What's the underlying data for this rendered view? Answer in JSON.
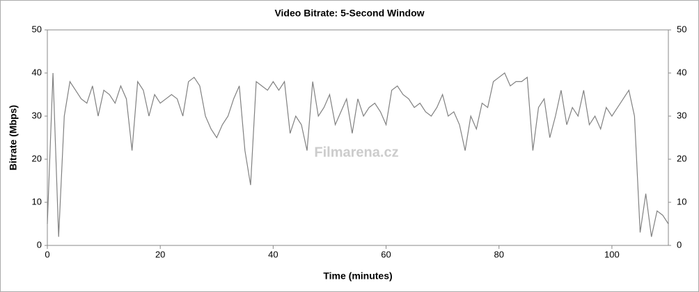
{
  "chart_data": {
    "type": "line",
    "title": "Video Bitrate: 5-Second Window",
    "x_label": "Time (minutes)",
    "y_label": "Bitrate (Mbps)",
    "watermark": "Filmarena.cz",
    "x": [
      0,
      1,
      2,
      3,
      4,
      5,
      6,
      7,
      8,
      9,
      10,
      11,
      12,
      13,
      14,
      15,
      16,
      17,
      18,
      19,
      20,
      21,
      22,
      23,
      24,
      25,
      26,
      27,
      28,
      29,
      30,
      31,
      32,
      33,
      34,
      35,
      36,
      37,
      38,
      39,
      40,
      41,
      42,
      43,
      44,
      45,
      46,
      47,
      48,
      49,
      50,
      51,
      52,
      53,
      54,
      55,
      56,
      57,
      58,
      59,
      60,
      61,
      62,
      63,
      64,
      65,
      66,
      67,
      68,
      69,
      70,
      71,
      72,
      73,
      74,
      75,
      76,
      77,
      78,
      79,
      80,
      81,
      82,
      83,
      84,
      85,
      86,
      87,
      88,
      89,
      90,
      91,
      92,
      93,
      94,
      95,
      96,
      97,
      98,
      99,
      100,
      101,
      102,
      103,
      104,
      105,
      106,
      107,
      108,
      109,
      110
    ],
    "series": [
      {
        "name": "Bitrate",
        "color": "#808080",
        "values": [
          5,
          40,
          2,
          30,
          38,
          36,
          34,
          33,
          37,
          30,
          36,
          35,
          33,
          37,
          34,
          22,
          38,
          36,
          30,
          35,
          33,
          34,
          35,
          34,
          30,
          38,
          39,
          37,
          30,
          27,
          25,
          28,
          30,
          34,
          37,
          22,
          14,
          38,
          37,
          36,
          38,
          36,
          38,
          26,
          30,
          28,
          22,
          38,
          30,
          32,
          35,
          28,
          31,
          34,
          26,
          34,
          30,
          32,
          33,
          31,
          28,
          36,
          37,
          35,
          34,
          32,
          33,
          31,
          30,
          32,
          35,
          30,
          31,
          28,
          22,
          30,
          27,
          33,
          32,
          38,
          39,
          40,
          37,
          38,
          38,
          39,
          22,
          32,
          34,
          25,
          30,
          36,
          28,
          32,
          30,
          36,
          28,
          30,
          27,
          32,
          30,
          32,
          34,
          36,
          30,
          3,
          12,
          2,
          8,
          7,
          5
        ]
      }
    ],
    "xlim": [
      0,
      110
    ],
    "xticks": [
      0,
      20,
      40,
      60,
      80,
      100
    ],
    "ylim": [
      0,
      50
    ],
    "yticks": [
      0,
      10,
      20,
      30,
      40,
      50
    ],
    "y2lim": [
      0,
      50
    ],
    "y2ticks": [
      0,
      10,
      20,
      30,
      40,
      50
    ]
  }
}
